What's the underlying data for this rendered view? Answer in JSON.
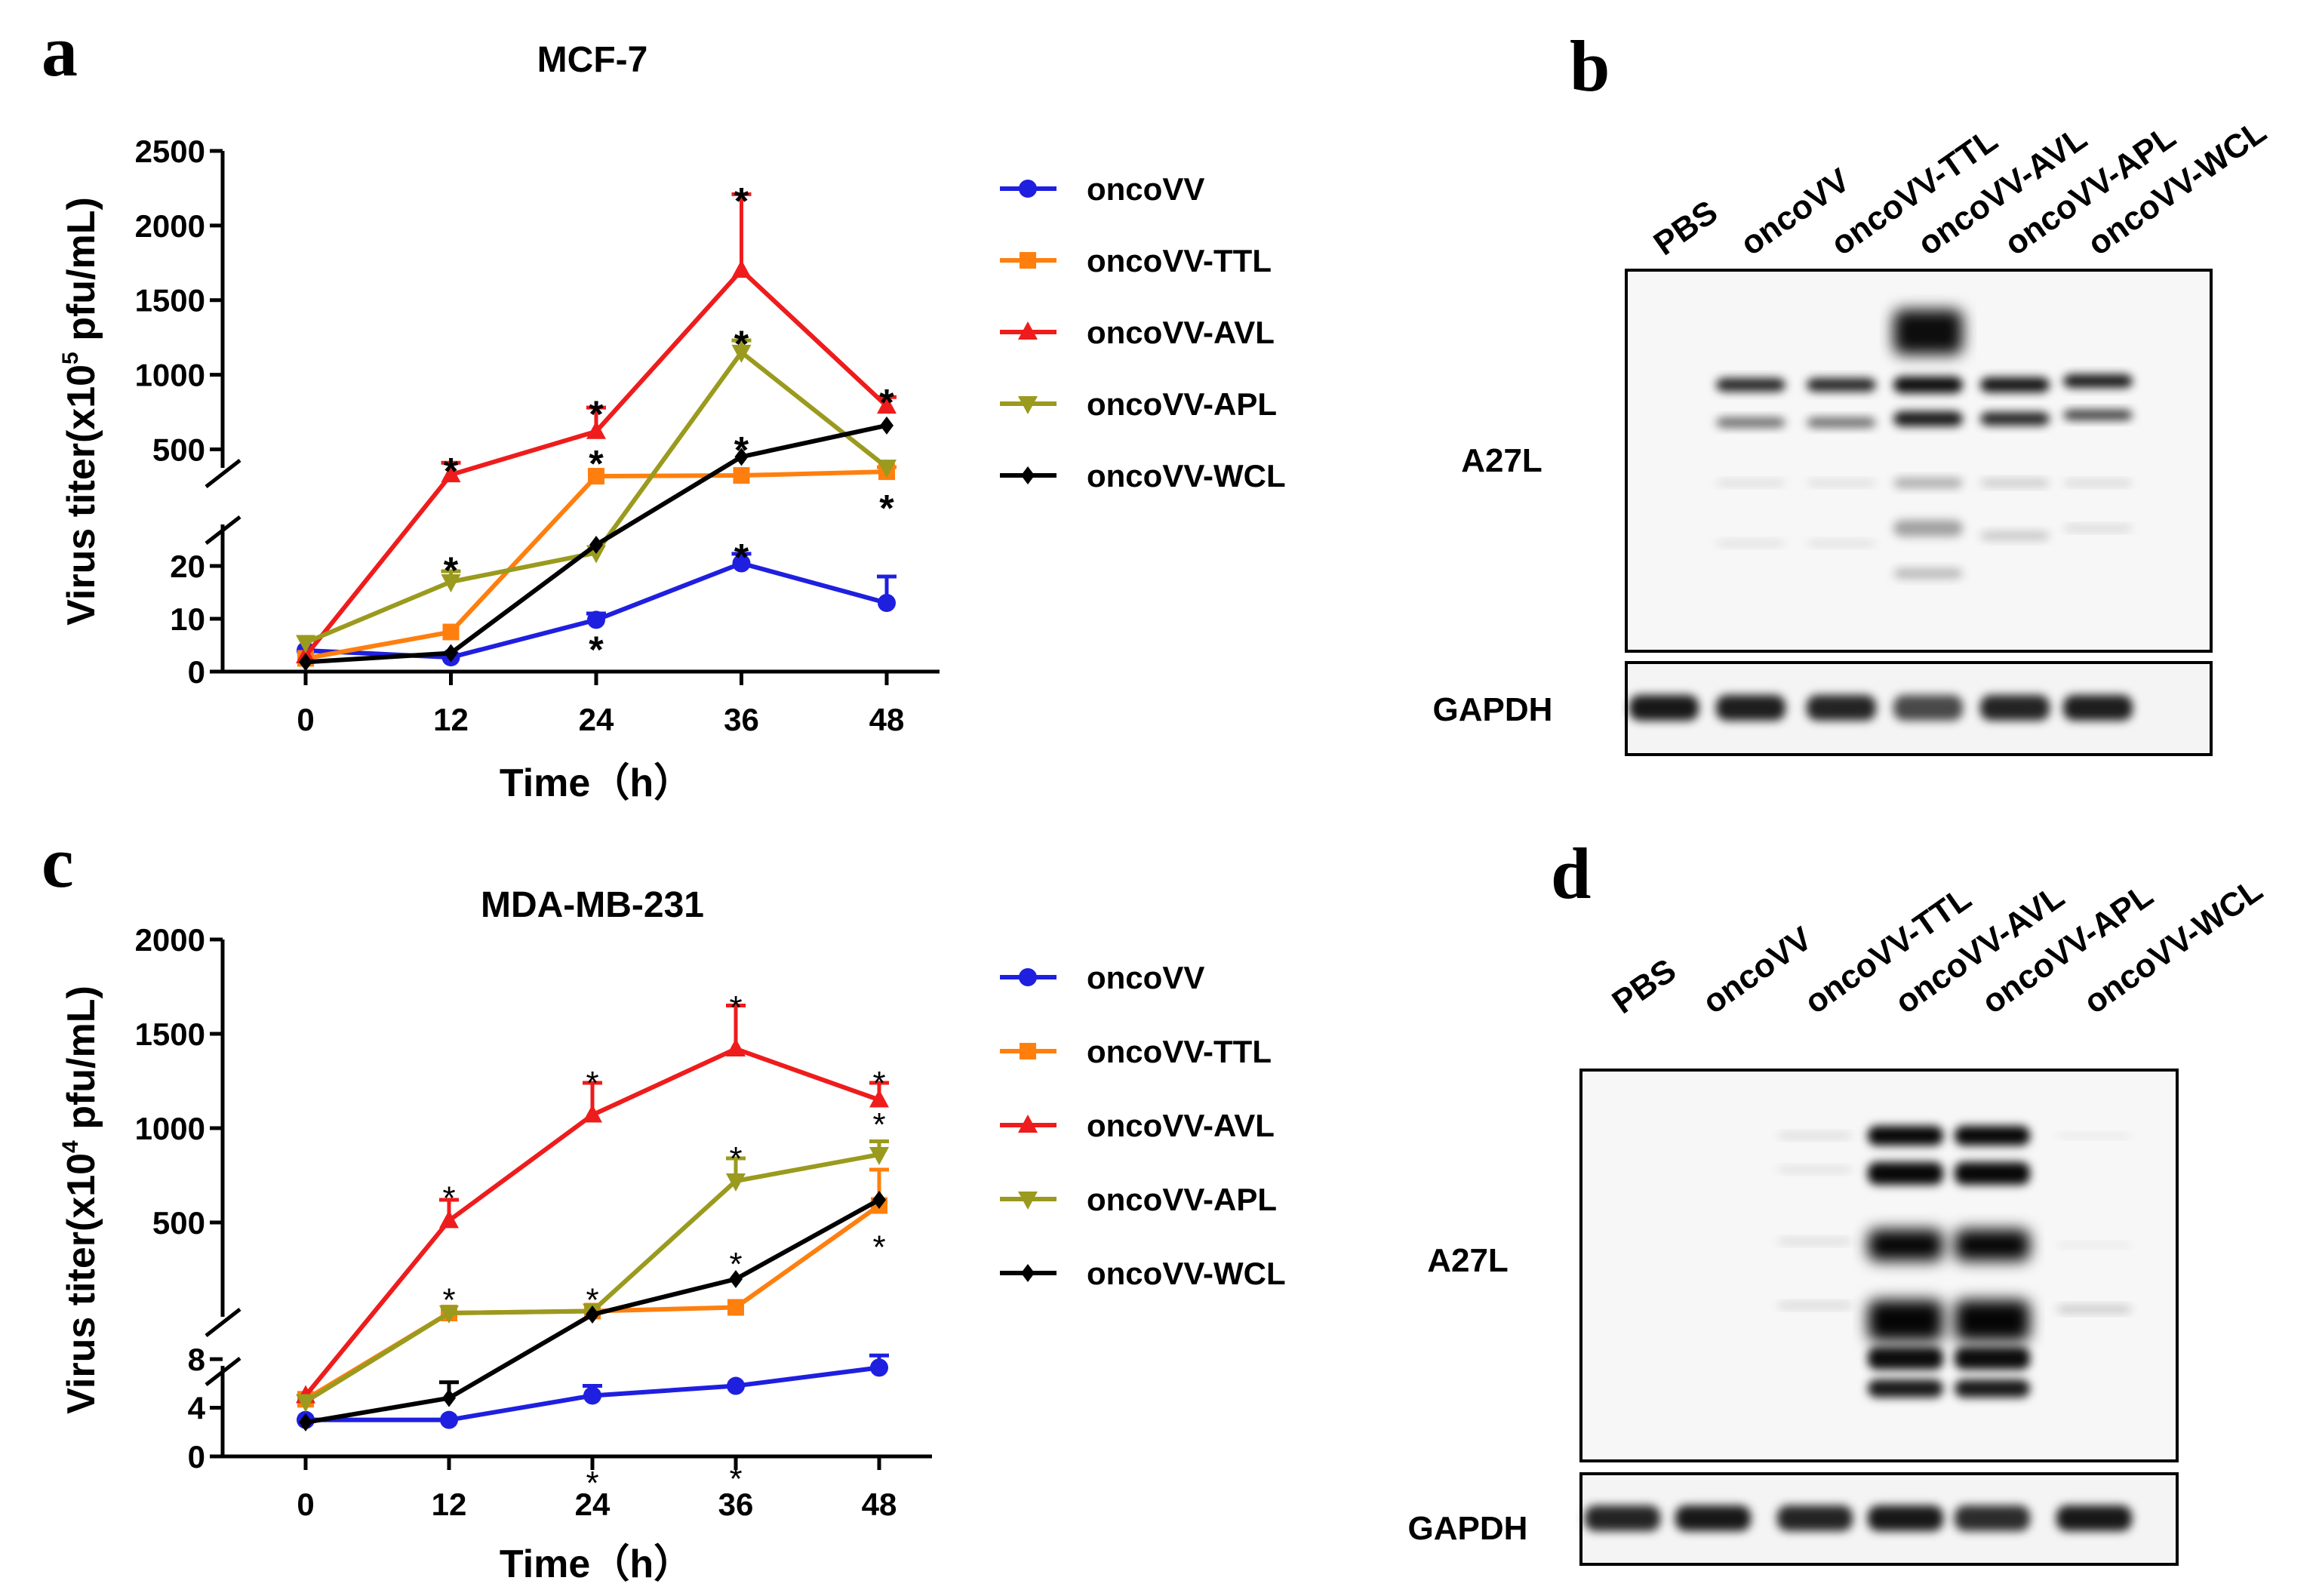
{
  "panels": {
    "a": "a",
    "b": "b",
    "c": "c",
    "d": "d"
  },
  "colors": {
    "oncoVV": "#1f1fe0",
    "oncoVV-TTL": "#ff7f0e",
    "oncoVV-AVL": "#ee1c1c",
    "oncoVV-APL": "#9a9a1e",
    "oncoVV-WCL": "#000000"
  },
  "chart_data": [
    {
      "type": "line",
      "panel": "a",
      "title": "MCF-7",
      "xlabel": "Time（h）",
      "ylabel": "Virus titer(x10",
      "ylabel_exp": "5",
      "ylabel_tail": " pfu/mL)",
      "x": [
        0,
        12,
        24,
        36,
        48
      ],
      "x_ticks": [
        "0",
        "12",
        "24",
        "36",
        "48"
      ],
      "y_ticks_lower": [
        "0",
        "10",
        "20"
      ],
      "y_ticks_upper": [
        "500",
        "1000",
        "1500",
        "2000",
        "2500"
      ],
      "lower_range": [
        0,
        25
      ],
      "upper_range": [
        300,
        2500
      ],
      "legend": [
        "oncoVV",
        "oncoVV-TTL",
        "oncoVV-AVL",
        "oncoVV-APL",
        "oncoVV-WCL"
      ],
      "series": [
        {
          "name": "oncoVV",
          "values": [
            4,
            2.7,
            9.8,
            20.5,
            13
          ],
          "errors": [
            0,
            0.5,
            1.2,
            1.8,
            5
          ]
        },
        {
          "name": "oncoVV-TTL",
          "values": [
            2.5,
            7.5,
            320,
            325,
            350
          ],
          "errors": [
            0,
            0,
            0,
            0,
            30
          ]
        },
        {
          "name": "oncoVV-AVL",
          "values": [
            3,
            330,
            620,
            1700,
            790
          ],
          "errors": [
            0,
            80,
            160,
            510,
            60
          ]
        },
        {
          "name": "oncoVV-APL",
          "values": [
            5.5,
            17,
            22.5,
            1150,
            380
          ],
          "errors": [
            0,
            2,
            0,
            80,
            0
          ]
        },
        {
          "name": "oncoVV-WCL",
          "values": [
            1.8,
            3.5,
            24,
            450,
            660
          ],
          "errors": [
            0,
            0,
            0,
            0,
            0
          ]
        }
      ],
      "annotations": [
        {
          "x": 12,
          "y": 420,
          "text": "*"
        },
        {
          "x": 24,
          "y": 800,
          "text": "*"
        },
        {
          "x": 36,
          "y": 2230,
          "text": "*"
        },
        {
          "x": 48,
          "y": 880,
          "text": "*"
        },
        {
          "x": 36,
          "y": 1270,
          "text": "*"
        },
        {
          "x": 24,
          "y": 470,
          "text": "*"
        },
        {
          "x": 36,
          "y": 560,
          "text": "*"
        },
        {
          "x": 48,
          "y": 170,
          "text": "*"
        },
        {
          "x": 12,
          "y": 21,
          "text": "*"
        },
        {
          "x": 24,
          "y": 6,
          "text": "*"
        },
        {
          "x": 36,
          "y": 23.5,
          "text": "*"
        }
      ]
    },
    {
      "type": "line",
      "panel": "c",
      "title": "MDA-MB-231",
      "xlabel": "Time（h）",
      "ylabel": "Virus titer(x10",
      "ylabel_exp": "4",
      "ylabel_tail": " pfu/mL)",
      "x": [
        0,
        12,
        24,
        36,
        48
      ],
      "x_ticks": [
        "0",
        "12",
        "24",
        "36",
        "48"
      ],
      "y_ticks_lower": [
        "0",
        "4",
        "8"
      ],
      "y_ticks_upper": [
        "500",
        "1000",
        "1500",
        "2000"
      ],
      "lower_range": [
        0,
        9
      ],
      "upper_range": [
        0,
        2000
      ],
      "legend": [
        "oncoVV",
        "oncoVV-TTL",
        "oncoVV-AVL",
        "oncoVV-APL",
        "oncoVV-WCL"
      ],
      "series": [
        {
          "name": "oncoVV",
          "values": [
            3,
            3,
            5,
            5.8,
            7.3
          ],
          "errors": [
            0,
            0,
            0.8,
            0,
            1
          ]
        },
        {
          "name": "oncoVV-TTL",
          "values": [
            4.7,
            20,
            30,
            50,
            590
          ],
          "errors": [
            0,
            0,
            0,
            0,
            190
          ]
        },
        {
          "name": "oncoVV-AVL",
          "values": [
            5,
            510,
            1070,
            1420,
            1150
          ],
          "errors": [
            0,
            110,
            170,
            230,
            90
          ]
        },
        {
          "name": "oncoVV-APL",
          "values": [
            4.5,
            20,
            30,
            720,
            860
          ],
          "errors": [
            0,
            0,
            0,
            120,
            70
          ]
        },
        {
          "name": "oncoVV-WCL",
          "values": [
            2.8,
            4.8,
            12,
            200,
            620
          ],
          "errors": [
            0,
            1.3,
            0,
            0,
            0
          ]
        }
      ],
      "annotations": [
        {
          "x": 12,
          "y": 690,
          "text": "*"
        },
        {
          "x": 24,
          "y": 1300,
          "text": "*"
        },
        {
          "x": 36,
          "y": 1700,
          "text": "*"
        },
        {
          "x": 48,
          "y": 1300,
          "text": "*"
        },
        {
          "x": 48,
          "y": 1080,
          "text": "*"
        },
        {
          "x": 36,
          "y": 900,
          "text": "*"
        },
        {
          "x": 36,
          "y": 340,
          "text": "*"
        },
        {
          "x": 12,
          "y": 150,
          "text": "*"
        },
        {
          "x": 24,
          "y": 150,
          "text": "*"
        },
        {
          "x": 48,
          "y": 430,
          "text": "*"
        },
        {
          "x": 24,
          "y": -110,
          "text": "*"
        },
        {
          "x": 36,
          "y": -80,
          "text": "*"
        }
      ]
    }
  ],
  "blots": [
    {
      "panel": "b",
      "lanes": [
        "PBS",
        "oncoVV",
        "oncoVV-TTL",
        "oncoVV-AVL",
        "oncoVV-APL",
        "oncoVV-WCL"
      ],
      "rows": [
        "A27L",
        "GAPDH"
      ]
    },
    {
      "panel": "d",
      "lanes": [
        "PBS",
        "oncoVV",
        "oncoVV-TTL",
        "oncoVV-AVL",
        "oncoVV-APL",
        "oncoVV-WCL"
      ],
      "rows": [
        "A27L",
        "GAPDH"
      ]
    }
  ]
}
